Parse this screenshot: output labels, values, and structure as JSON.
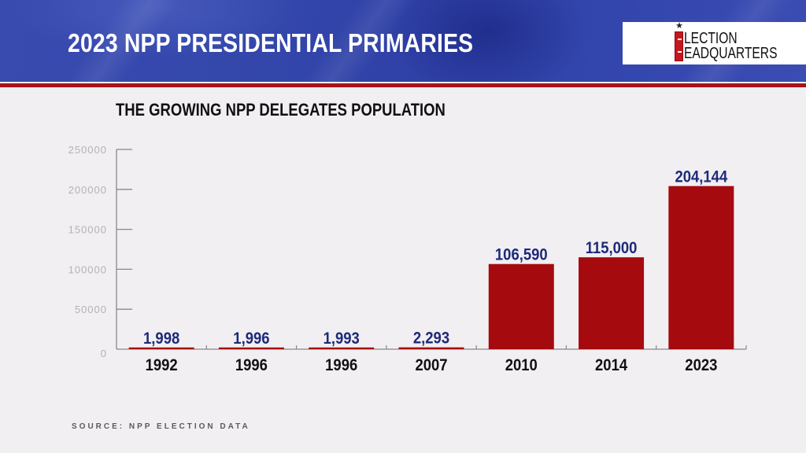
{
  "header": {
    "title": "2023 NPP PRESIDENTIAL PRIMARIES",
    "logo": {
      "line1": "LECTION",
      "line2": "EADQUARTERS",
      "star": "★",
      "brand_name": "Election Headquarters"
    }
  },
  "colors": {
    "header_blue": "#3447ab",
    "stripe_red": "#a8121a",
    "bar_red": "#a50a0f",
    "value_label_navy": "#1d2a7a",
    "background": "#f1eff1"
  },
  "source": "SOURCE: NPP ELECTION DATA",
  "chart_data": {
    "type": "bar",
    "title": "THE GROWING NPP DELEGATES POPULATION",
    "xlabel": "",
    "ylabel": "",
    "categories": [
      "1992",
      "1996",
      "1996",
      "2007",
      "2010",
      "2014",
      "2023"
    ],
    "values": [
      1998,
      1996,
      1993,
      2293,
      106590,
      115000,
      204144
    ],
    "value_labels": [
      "1,998",
      "1,996",
      "1,993",
      "2,293",
      "106,590",
      "115,000",
      "204,144"
    ],
    "ylim": [
      0,
      250000
    ],
    "yticks": [
      0,
      50000,
      100000,
      150000,
      200000,
      250000
    ],
    "ytick_labels": [
      "0",
      "50000",
      "100000",
      "150000",
      "200000",
      "250000"
    ],
    "grid": false,
    "legend": "none"
  }
}
